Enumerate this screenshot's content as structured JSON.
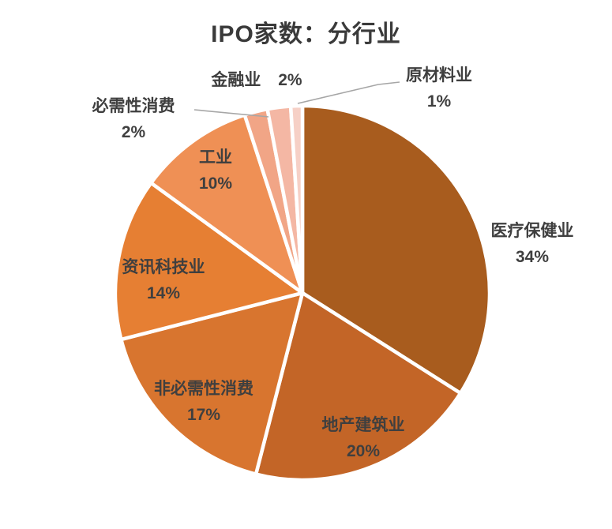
{
  "chart_data": {
    "type": "pie",
    "title": "IPO家数：分行业",
    "direction": "clockwise",
    "start_angle_deg": 0,
    "stroke_color": "#FFFFFF",
    "leader_line_color": "#A6A6A6",
    "text_color": "#3F3F3F",
    "slices": [
      {
        "label": "医疗保健业",
        "value": 34,
        "pct_text": "34%",
        "color": "#A85C1E",
        "label_placement": "outside-right"
      },
      {
        "label": "地产建筑业",
        "value": 20,
        "pct_text": "20%",
        "color": "#C36527",
        "label_placement": "inside"
      },
      {
        "label": "非必需性消费",
        "value": 17,
        "pct_text": "17%",
        "color": "#D8752F",
        "label_placement": "inside"
      },
      {
        "label": "资讯科技业",
        "value": 14,
        "pct_text": "14%",
        "color": "#E67F33",
        "label_placement": "inside"
      },
      {
        "label": "工业",
        "value": 10,
        "pct_text": "10%",
        "color": "#EF9055",
        "label_placement": "inside"
      },
      {
        "label": "必需性消费",
        "value": 2,
        "pct_text": "2%",
        "color": "#F1A586",
        "label_placement": "outside-left",
        "leader_line": true
      },
      {
        "label": "金融业",
        "value": 2,
        "pct_text": "2%",
        "color": "#F4B7A4",
        "label_placement": "outside-top"
      },
      {
        "label": "原材料业",
        "value": 1,
        "pct_text": "1%",
        "color": "#F6D0C6",
        "label_placement": "outside-right",
        "leader_line": true
      }
    ]
  }
}
